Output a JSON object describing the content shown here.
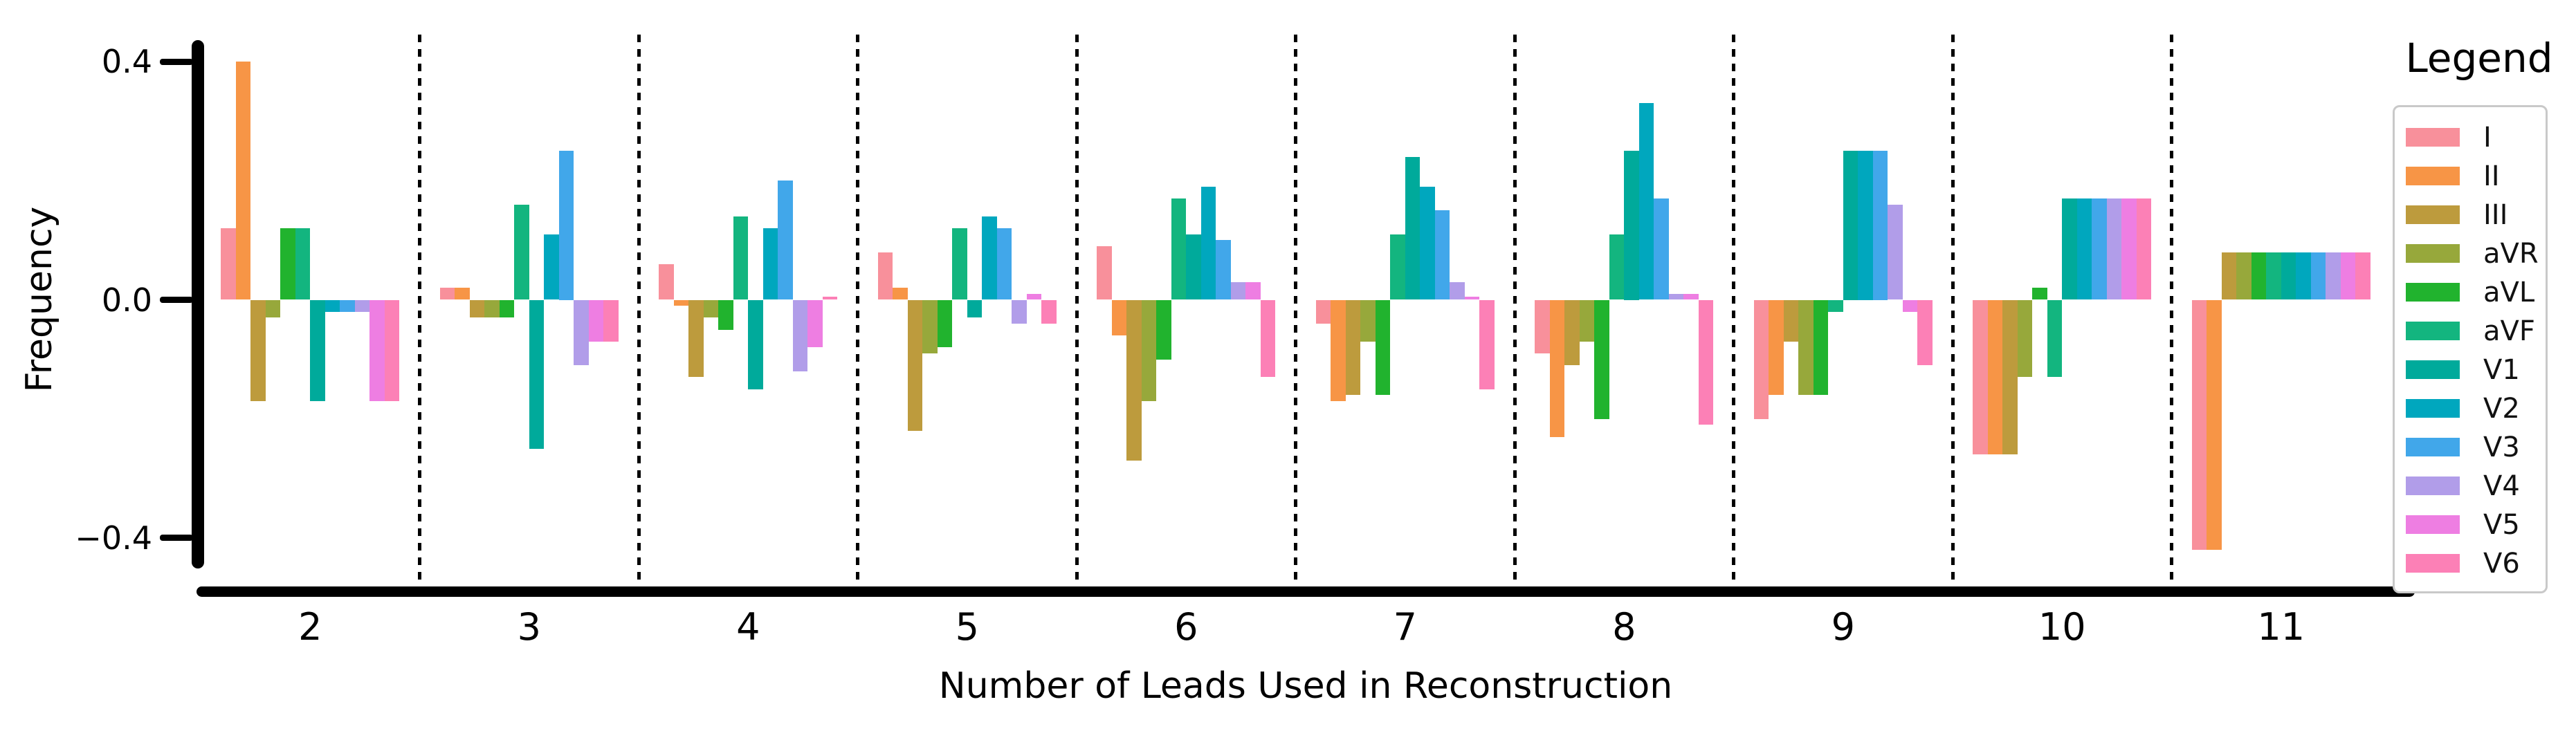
{
  "chart_data": {
    "type": "bar",
    "title": "",
    "xlabel": "Number of Leads Used in Reconstruction",
    "ylabel": "Frequency",
    "categories": [
      "2",
      "3",
      "4",
      "5",
      "6",
      "7",
      "8",
      "9",
      "10",
      "11"
    ],
    "ylim": [
      -0.45,
      0.45
    ],
    "yticks": [
      {
        "label": "0.4",
        "value": 0.4
      },
      {
        "label": "0.0",
        "value": 0.0
      },
      {
        "label": "−0.4",
        "value": -0.4
      }
    ],
    "grid": false,
    "group_separators": "dotted-vertical-lines",
    "legend": {
      "title": "Legend",
      "position": "right"
    },
    "series": [
      {
        "name": "I",
        "color": "#F8909B",
        "values": [
          0.12,
          0.02,
          0.06,
          0.08,
          0.09,
          -0.04,
          -0.09,
          -0.2,
          -0.26,
          -0.42
        ]
      },
      {
        "name": "II",
        "color": "#F79546",
        "values": [
          0.4,
          0.02,
          -0.01,
          0.02,
          -0.06,
          -0.17,
          -0.23,
          -0.16,
          -0.26,
          -0.42
        ]
      },
      {
        "name": "III",
        "color": "#BD9B3D",
        "values": [
          -0.17,
          -0.03,
          -0.13,
          -0.22,
          -0.27,
          -0.16,
          -0.11,
          -0.07,
          -0.26,
          0.08
        ]
      },
      {
        "name": "aVR",
        "color": "#97A83B",
        "values": [
          -0.03,
          -0.03,
          -0.03,
          -0.09,
          -0.17,
          -0.07,
          -0.07,
          -0.16,
          -0.13,
          0.08
        ]
      },
      {
        "name": "aVL",
        "color": "#21B32E",
        "values": [
          0.12,
          -0.03,
          -0.05,
          -0.08,
          -0.1,
          -0.16,
          -0.2,
          -0.16,
          0.02,
          0.08
        ]
      },
      {
        "name": "aVF",
        "color": "#13B57F",
        "values": [
          0.12,
          0.16,
          0.14,
          0.12,
          0.17,
          0.11,
          0.11,
          -0.02,
          -0.13,
          0.08
        ]
      },
      {
        "name": "V1",
        "color": "#00AA9B",
        "values": [
          -0.17,
          -0.25,
          -0.15,
          -0.03,
          0.11,
          0.24,
          0.25,
          0.25,
          0.17,
          0.08
        ]
      },
      {
        "name": "V2",
        "color": "#00A7BE",
        "values": [
          -0.02,
          0.11,
          0.12,
          0.14,
          0.19,
          0.19,
          0.33,
          0.25,
          0.17,
          0.08
        ]
      },
      {
        "name": "V3",
        "color": "#41A7EA",
        "values": [
          -0.02,
          0.25,
          0.2,
          0.12,
          0.1,
          0.15,
          0.17,
          0.25,
          0.17,
          0.08
        ]
      },
      {
        "name": "V4",
        "color": "#B19DE9",
        "values": [
          -0.02,
          -0.11,
          -0.12,
          -0.04,
          0.03,
          0.03,
          0.01,
          0.16,
          0.17,
          0.08
        ]
      },
      {
        "name": "V5",
        "color": "#EE7EE2",
        "values": [
          -0.17,
          -0.07,
          -0.08,
          0.01,
          0.03,
          0.005,
          0.01,
          -0.02,
          0.17,
          0.08
        ]
      },
      {
        "name": "V6",
        "color": "#FC80B6",
        "values": [
          -0.17,
          -0.07,
          0.005,
          -0.04,
          -0.13,
          -0.15,
          -0.21,
          -0.11,
          0.17,
          0.08
        ]
      }
    ]
  }
}
